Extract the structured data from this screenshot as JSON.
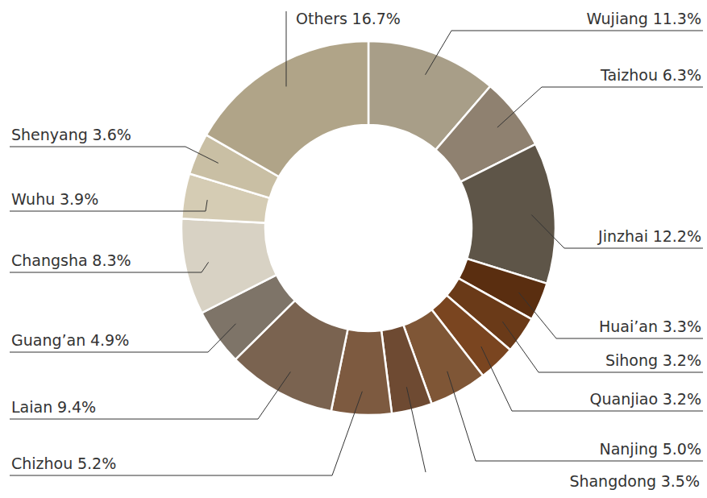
{
  "chart_data": {
    "type": "donut",
    "categories": [
      "Wujiang",
      "Taizhou",
      "Jinzhai",
      "Huai’an",
      "Sihong",
      "Quanjiao",
      "Nanjing",
      "Shangdong",
      "Chizhou",
      "Laian",
      "Guang’an",
      "Changsha",
      "Wuhu",
      "Shenyang",
      "Others"
    ],
    "values": [
      11.3,
      6.3,
      12.2,
      3.3,
      3.2,
      3.2,
      5.0,
      3.5,
      5.2,
      9.4,
      4.9,
      8.3,
      3.9,
      3.6,
      16.7
    ],
    "value_labels": [
      "11.3%",
      "6.3%",
      "12.2%",
      "3.3%",
      "3.2%",
      "3.2%",
      "5.0%",
      "3.5%",
      "5.2%",
      "9.4%",
      "4.9%",
      "8.3%",
      "3.9%",
      "3.6%",
      "16.7%"
    ],
    "colors": [
      "#a89e88",
      "#8f8170",
      "#5e5548",
      "#5a2e10",
      "#6a3a18",
      "#7a4520",
      "#7f5636",
      "#6e4a32",
      "#7d5a40",
      "#7a6350",
      "#7e7468",
      "#d8d2c4",
      "#d5ccb4",
      "#c9bfa4",
      "#b0a488"
    ],
    "data_labels": true
  }
}
